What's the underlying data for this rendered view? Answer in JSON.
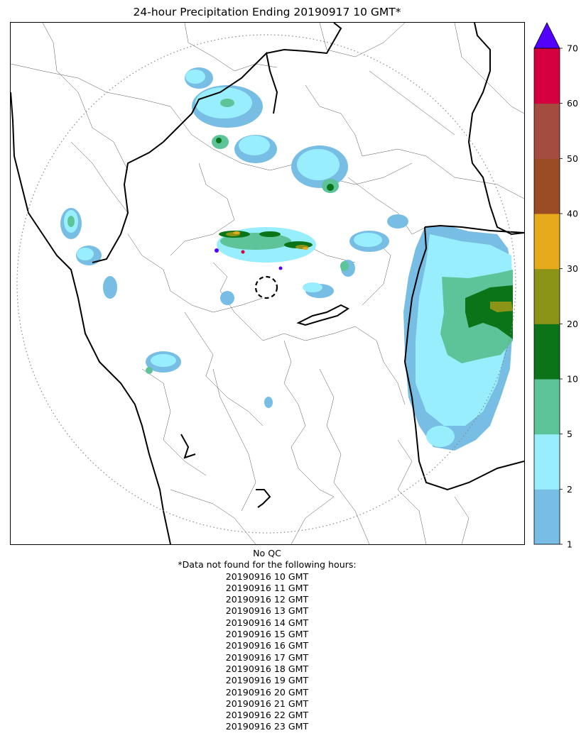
{
  "title": "24-hour Precipitation Ending 20190917 10 GMT*",
  "qc_label": "No QC",
  "missing_header": "*Data not found for the following hours:",
  "missing_hours": [
    "20190916 10 GMT",
    "20190916 11 GMT",
    "20190916 12 GMT",
    "20190916 13 GMT",
    "20190916 14 GMT",
    "20190916 15 GMT",
    "20190916 16 GMT",
    "20190916 17 GMT",
    "20190916 18 GMT",
    "20190916 19 GMT",
    "20190916 20 GMT",
    "20190916 21 GMT",
    "20190916 22 GMT",
    "20190916 23 GMT"
  ],
  "colorbar": {
    "tick_labels": [
      "1",
      "2",
      "5",
      "10",
      "20",
      "30",
      "40",
      "50",
      "60",
      "70"
    ],
    "colors": [
      "#78bee4",
      "#98eefc",
      "#5cc498",
      "#0c7418",
      "#8c9418",
      "#e6aa1c",
      "#9c4c24",
      "#a44c40",
      "#d40040"
    ],
    "extend_color": "#5200ff"
  },
  "legend_colors": {
    "level_1_2": "#78bee4",
    "level_2_5": "#98eefc",
    "level_5_10": "#5cc498",
    "level_10_20": "#0c7418",
    "level_20_30": "#8c9418",
    "level_30_40": "#e6aa1c",
    "level_40_50": "#9c4c24",
    "level_50_60": "#a44c40",
    "level_60_70": "#d40040",
    "level_70_plus": "#5200ff"
  }
}
